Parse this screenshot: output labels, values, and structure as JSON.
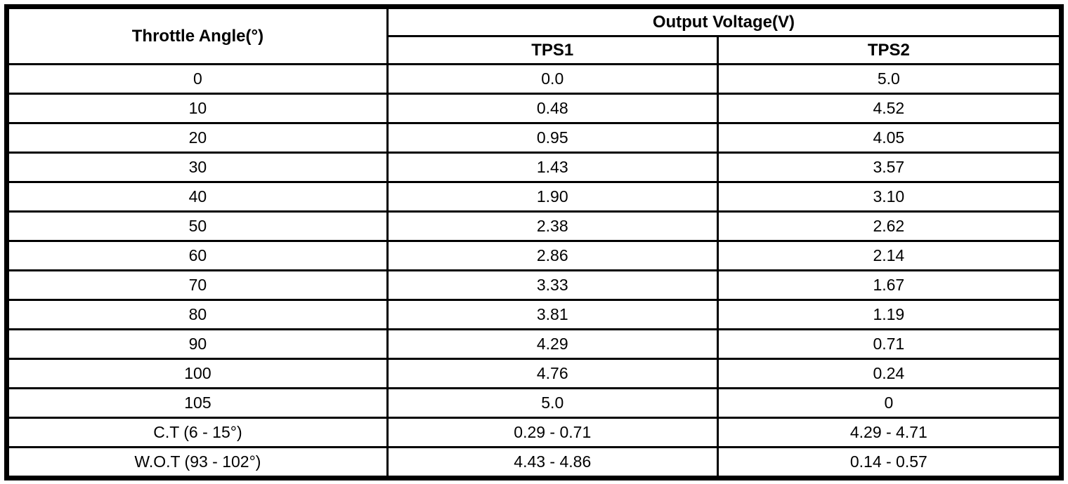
{
  "table": {
    "col1_header": "Throttle Angle(°)",
    "group_header": "Output Voltage(V)",
    "subheaders": [
      "TPS1",
      "TPS2"
    ],
    "rows": [
      {
        "angle": "0",
        "tps1": "0.0",
        "tps2": "5.0"
      },
      {
        "angle": "10",
        "tps1": "0.48",
        "tps2": "4.52"
      },
      {
        "angle": "20",
        "tps1": "0.95",
        "tps2": "4.05"
      },
      {
        "angle": "30",
        "tps1": "1.43",
        "tps2": "3.57"
      },
      {
        "angle": "40",
        "tps1": "1.90",
        "tps2": "3.10"
      },
      {
        "angle": "50",
        "tps1": "2.38",
        "tps2": "2.62"
      },
      {
        "angle": "60",
        "tps1": "2.86",
        "tps2": "2.14"
      },
      {
        "angle": "70",
        "tps1": "3.33",
        "tps2": "1.67"
      },
      {
        "angle": "80",
        "tps1": "3.81",
        "tps2": "1.19"
      },
      {
        "angle": "90",
        "tps1": "4.29",
        "tps2": "0.71"
      },
      {
        "angle": "100",
        "tps1": "4.76",
        "tps2": "0.24"
      },
      {
        "angle": "105",
        "tps1": "5.0",
        "tps2": "0"
      },
      {
        "angle": "C.T (6 - 15°)",
        "tps1": "0.29 - 0.71",
        "tps2": "4.29 - 4.71"
      },
      {
        "angle": "W.O.T (93 - 102°)",
        "tps1": "4.43 - 4.86",
        "tps2": "0.14 - 0.57"
      }
    ]
  },
  "colors": {
    "border": "#000000",
    "background": "#ffffff",
    "text": "#000000"
  }
}
